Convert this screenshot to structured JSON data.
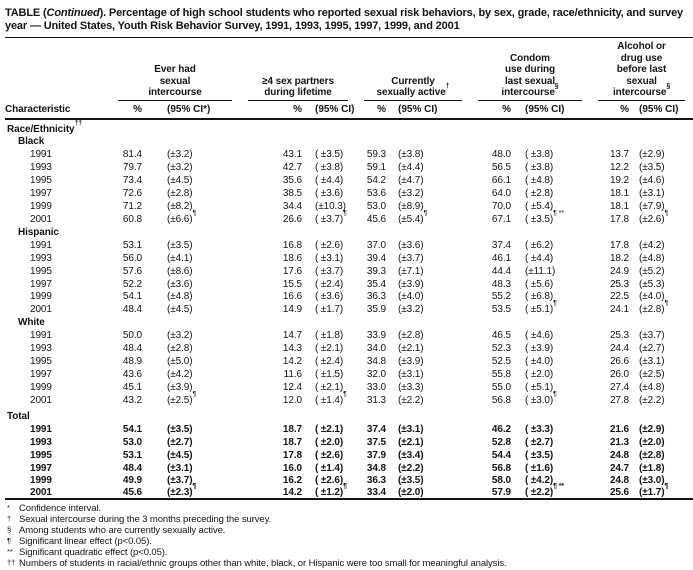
{
  "title": {
    "t1": "TABLE (",
    "t2": "Continued",
    "t3": "). Percentage of high school students who reported sexual risk behaviors, by sex, grade, race/ethnicity, and survey year — United States, Youth Risk Behavior Survey, 1991, 1993, 1995, 1997, 1999, and 2001"
  },
  "header": {
    "characteristic": "Characteristic",
    "groups": [
      {
        "lines": [
          "Ever had",
          "sexual",
          "intercourse"
        ],
        "sup": "",
        "pct": "%",
        "ci": "(95% CI*)"
      },
      {
        "lines": [
          "≥4 sex partners",
          "during lifetime"
        ],
        "sup": "",
        "pct": "%",
        "ci": "(95% CI)"
      },
      {
        "lines": [
          "Currently",
          "sexually active"
        ],
        "sup": "†",
        "pct": "%",
        "ci": "(95% CI)"
      },
      {
        "lines": [
          "Condom",
          "use during",
          "last sexual",
          "intercourse"
        ],
        "sup": "§",
        "pct": "%",
        "ci": "(95% CI)"
      },
      {
        "lines": [
          "Alcohol or",
          "drug use",
          "before last",
          "sexual",
          "intercourse"
        ],
        "sup": "§",
        "pct": "%",
        "ci": "(95% CI)"
      }
    ]
  },
  "body": [
    {
      "type": "section",
      "label": "Race/Ethnicity",
      "sup": "††"
    },
    {
      "type": "subsection",
      "label": "Black"
    },
    {
      "type": "data",
      "year": "1991",
      "cells": [
        [
          "81.4",
          "(±3.2)",
          ""
        ],
        [
          "43.1",
          "( ±3.5)",
          ""
        ],
        [
          "59.3",
          "(±3.8)",
          ""
        ],
        [
          "48.0",
          "( ±3.8)",
          ""
        ],
        [
          "13.7",
          "(±2.9)",
          ""
        ]
      ]
    },
    {
      "type": "data",
      "year": "1993",
      "cells": [
        [
          "79.7",
          "(±3.2)",
          ""
        ],
        [
          "42.7",
          "( ±3.8)",
          ""
        ],
        [
          "59.1",
          "(±4.4)",
          ""
        ],
        [
          "56.5",
          "( ±3.8)",
          ""
        ],
        [
          "12.2",
          "(±3.5)",
          ""
        ]
      ]
    },
    {
      "type": "data",
      "year": "1995",
      "cells": [
        [
          "73.4",
          "(±4.5)",
          ""
        ],
        [
          "35.6",
          "( ±4.4)",
          ""
        ],
        [
          "54.2",
          "(±4.7)",
          ""
        ],
        [
          "66.1",
          "( ±4.8)",
          ""
        ],
        [
          "19.2",
          "(±4.6)",
          ""
        ]
      ]
    },
    {
      "type": "data",
      "year": "1997",
      "cells": [
        [
          "72.6",
          "(±2.8)",
          ""
        ],
        [
          "38.5",
          "( ±3.6)",
          ""
        ],
        [
          "53.6",
          "(±3.2)",
          ""
        ],
        [
          "64.0",
          "( ±2.8)",
          ""
        ],
        [
          "18.1",
          "(±3.1)",
          ""
        ]
      ]
    },
    {
      "type": "data",
      "year": "1999",
      "cells": [
        [
          "71.2",
          "(±8.2)",
          ""
        ],
        [
          "34.4",
          "(±10.3)",
          ""
        ],
        [
          "53.0",
          "(±8.9)",
          ""
        ],
        [
          "70.0",
          "( ±5.4)",
          ""
        ],
        [
          "18.1",
          "(±7.9)",
          ""
        ]
      ]
    },
    {
      "type": "data",
      "year": "2001",
      "cells": [
        [
          "60.8",
          "(±6.6)",
          "¶"
        ],
        [
          "26.6",
          "( ±3.7)",
          "¶"
        ],
        [
          "45.6",
          "(±5.4)",
          "¶"
        ],
        [
          "67.1",
          "( ±3.5)",
          "¶ **"
        ],
        [
          "17.8",
          "(±2.6)",
          "¶"
        ]
      ]
    },
    {
      "type": "subsection",
      "label": "Hispanic"
    },
    {
      "type": "data",
      "year": "1991",
      "cells": [
        [
          "53.1",
          "(±3.5)",
          ""
        ],
        [
          "16.8",
          "( ±2.6)",
          ""
        ],
        [
          "37.0",
          "(±3.6)",
          ""
        ],
        [
          "37.4",
          "( ±6.2)",
          ""
        ],
        [
          "17.8",
          "(±4.2)",
          ""
        ]
      ]
    },
    {
      "type": "data",
      "year": "1993",
      "cells": [
        [
          "56.0",
          "(±4.1)",
          ""
        ],
        [
          "18.6",
          "( ±3.1)",
          ""
        ],
        [
          "39.4",
          "(±3.7)",
          ""
        ],
        [
          "46.1",
          "( ±4.4)",
          ""
        ],
        [
          "18.2",
          "(±4.8)",
          ""
        ]
      ]
    },
    {
      "type": "data",
      "year": "1995",
      "cells": [
        [
          "57.6",
          "(±8.6)",
          ""
        ],
        [
          "17.6",
          "( ±3.7)",
          ""
        ],
        [
          "39.3",
          "(±7.1)",
          ""
        ],
        [
          "44.4",
          "(±11.1)",
          ""
        ],
        [
          "24.9",
          "(±5.2)",
          ""
        ]
      ]
    },
    {
      "type": "data",
      "year": "1997",
      "cells": [
        [
          "52.2",
          "(±3.6)",
          ""
        ],
        [
          "15.5",
          "( ±2.4)",
          ""
        ],
        [
          "35.4",
          "(±3.9)",
          ""
        ],
        [
          "48.3",
          "( ±5.6)",
          ""
        ],
        [
          "25.3",
          "(±5.3)",
          ""
        ]
      ]
    },
    {
      "type": "data",
      "year": "1999",
      "cells": [
        [
          "54.1",
          "(±4.8)",
          ""
        ],
        [
          "16.6",
          "( ±3.6)",
          ""
        ],
        [
          "36.3",
          "(±4.0)",
          ""
        ],
        [
          "55.2",
          "( ±6.8)",
          ""
        ],
        [
          "22.5",
          "(±4.0)",
          ""
        ]
      ]
    },
    {
      "type": "data",
      "year": "2001",
      "cells": [
        [
          "48.4",
          "(±4.5)",
          ""
        ],
        [
          "14.9",
          "( ±1.7)",
          ""
        ],
        [
          "35.9",
          "(±3.2)",
          ""
        ],
        [
          "53.5",
          "( ±5.1)",
          "¶"
        ],
        [
          "24.1",
          "(±2.8)",
          "¶"
        ]
      ]
    },
    {
      "type": "subsection",
      "label": "White"
    },
    {
      "type": "data",
      "year": "1991",
      "cells": [
        [
          "50.0",
          "(±3.2)",
          ""
        ],
        [
          "14.7",
          "( ±1.8)",
          ""
        ],
        [
          "33.9",
          "(±2.8)",
          ""
        ],
        [
          "46.5",
          "( ±4.6)",
          ""
        ],
        [
          "25.3",
          "(±3.7)",
          ""
        ]
      ]
    },
    {
      "type": "data",
      "year": "1993",
      "cells": [
        [
          "48.4",
          "(±2.8)",
          ""
        ],
        [
          "14.3",
          "( ±2.1)",
          ""
        ],
        [
          "34.0",
          "(±2.1)",
          ""
        ],
        [
          "52.3",
          "( ±3.9)",
          ""
        ],
        [
          "24.4",
          "(±2.7)",
          ""
        ]
      ]
    },
    {
      "type": "data",
      "year": "1995",
      "cells": [
        [
          "48.9",
          "(±5.0)",
          ""
        ],
        [
          "14.2",
          "( ±2.4)",
          ""
        ],
        [
          "34.8",
          "(±3.9)",
          ""
        ],
        [
          "52.5",
          "( ±4.0)",
          ""
        ],
        [
          "26.6",
          "(±3.1)",
          ""
        ]
      ]
    },
    {
      "type": "data",
      "year": "1997",
      "cells": [
        [
          "43.6",
          "(±4.2)",
          ""
        ],
        [
          "11.6",
          "( ±1.5)",
          ""
        ],
        [
          "32.0",
          "(±3.1)",
          ""
        ],
        [
          "55.8",
          "( ±2.0)",
          ""
        ],
        [
          "26.0",
          "(±2.5)",
          ""
        ]
      ]
    },
    {
      "type": "data",
      "year": "1999",
      "cells": [
        [
          "45.1",
          "(±3.9)",
          ""
        ],
        [
          "12.4",
          "( ±2.1)",
          ""
        ],
        [
          "33.0",
          "(±3.3)",
          ""
        ],
        [
          "55.0",
          "( ±5.1)",
          ""
        ],
        [
          "27.4",
          "(±4.8)",
          ""
        ]
      ]
    },
    {
      "type": "data",
      "year": "2001",
      "cells": [
        [
          "43.2",
          "(±2.5)",
          "¶"
        ],
        [
          "12.0",
          "( ±1.4)",
          "¶"
        ],
        [
          "31.3",
          "(±2.2)",
          ""
        ],
        [
          "56.8",
          "( ±3.0)",
          "¶"
        ],
        [
          "27.8",
          "(±2.2)",
          ""
        ]
      ]
    },
    {
      "type": "section",
      "label": "Total"
    },
    {
      "type": "data",
      "bold": true,
      "year": "1991",
      "cells": [
        [
          "54.1",
          "(±3.5)",
          ""
        ],
        [
          "18.7",
          "( ±2.1)",
          ""
        ],
        [
          "37.4",
          "(±3.1)",
          ""
        ],
        [
          "46.2",
          "( ±3.3)",
          ""
        ],
        [
          "21.6",
          "(±2.9)",
          ""
        ]
      ]
    },
    {
      "type": "data",
      "bold": true,
      "year": "1993",
      "cells": [
        [
          "53.0",
          "(±2.7)",
          ""
        ],
        [
          "18.7",
          "( ±2.0)",
          ""
        ],
        [
          "37.5",
          "(±2.1)",
          ""
        ],
        [
          "52.8",
          "( ±2.7)",
          ""
        ],
        [
          "21.3",
          "(±2.0)",
          ""
        ]
      ]
    },
    {
      "type": "data",
      "bold": true,
      "year": "1995",
      "cells": [
        [
          "53.1",
          "(±4.5)",
          ""
        ],
        [
          "17.8",
          "( ±2.6)",
          ""
        ],
        [
          "37.9",
          "(±3.4)",
          ""
        ],
        [
          "54.4",
          "( ±3.5)",
          ""
        ],
        [
          "24.8",
          "(±2.8)",
          ""
        ]
      ]
    },
    {
      "type": "data",
      "bold": true,
      "year": "1997",
      "cells": [
        [
          "48.4",
          "(±3.1)",
          ""
        ],
        [
          "16.0",
          "( ±1.4)",
          ""
        ],
        [
          "34.8",
          "(±2.2)",
          ""
        ],
        [
          "56.8",
          "( ±1.6)",
          ""
        ],
        [
          "24.7",
          "(±1.8)",
          ""
        ]
      ]
    },
    {
      "type": "data",
      "bold": true,
      "year": "1999",
      "cells": [
        [
          "49.9",
          "(±3.7)",
          ""
        ],
        [
          "16.2",
          "( ±2.6)",
          ""
        ],
        [
          "36.3",
          "(±3.5)",
          ""
        ],
        [
          "58.0",
          "( ±4.2)",
          ""
        ],
        [
          "24.8",
          "(±3.0)",
          ""
        ]
      ]
    },
    {
      "type": "data",
      "bold": true,
      "year": "2001",
      "cells": [
        [
          "45.6",
          "(±2.3)",
          "¶"
        ],
        [
          "14.2",
          "( ±1.2)",
          "¶"
        ],
        [
          "33.4",
          "(±2.0)",
          ""
        ],
        [
          "57.9",
          "( ±2.2)",
          "¶ **"
        ],
        [
          "25.6",
          "(±1.7)",
          "¶"
        ]
      ]
    }
  ],
  "footnotes": [
    {
      "mark": "*",
      "text": "Confidence interval."
    },
    {
      "mark": "†",
      "text": "Sexual intercourse during the 3 months preceding the survey."
    },
    {
      "mark": "§",
      "text": "Among students who are currently sexually active."
    },
    {
      "mark": "¶",
      "text": "Significant linear effect (p<0.05)."
    },
    {
      "mark": "**",
      "text": "Significant quadratic effect (p<0.05)."
    },
    {
      "mark": "††",
      "text": "Numbers of students in racial/ethnic groups other than white, black, or Hispanic were too small for meaningful analysis."
    }
  ]
}
